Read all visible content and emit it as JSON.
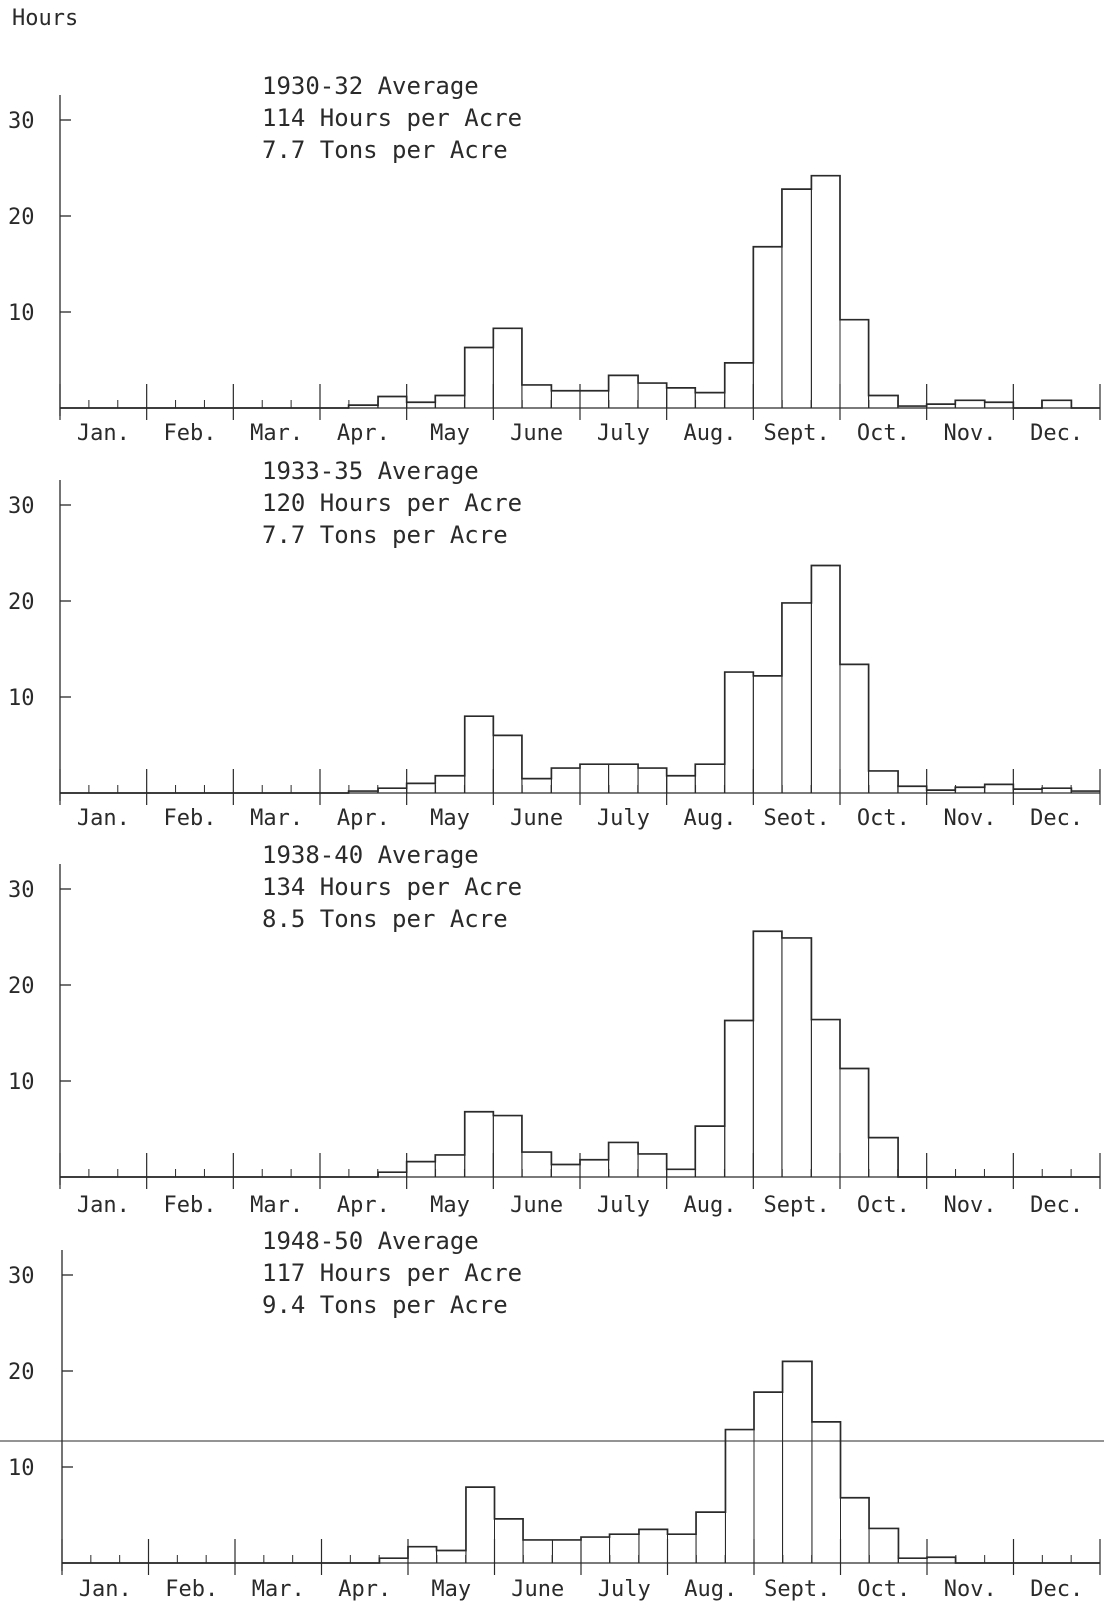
{
  "y_unit_label": "Hours",
  "chart_data": [
    {
      "type": "bar",
      "step_histogram": true,
      "title_lines": [
        "1930-32 Average",
        "114 Hours per Acre",
        "7.7 Tons per Acre"
      ],
      "xlabel": "",
      "ylabel": "Hours",
      "ylim": [
        0,
        30
      ],
      "yticks": [
        10,
        20,
        30
      ],
      "month_labels": [
        "Jan.",
        "Feb.",
        "Mar.",
        "Apr.",
        "May",
        "June",
        "July",
        "Aug.",
        "Sept.",
        "Oct.",
        "Nov.",
        "Dec."
      ],
      "period_starts": [
        0,
        0.33,
        0.67,
        1,
        1.33,
        1.67,
        2,
        2.33,
        2.67,
        3,
        3.33,
        3.67,
        4,
        4.33,
        4.67,
        5,
        5.33,
        5.67,
        6,
        6.33,
        6.67,
        7,
        7.33,
        7.67,
        8,
        8.33,
        8.67,
        9,
        9.33,
        9.67,
        10,
        10.33,
        10.67,
        11,
        11.33,
        11.67
      ],
      "values": [
        0,
        0,
        0,
        0,
        0,
        0,
        0,
        0,
        0,
        0,
        0.3,
        1.2,
        0.6,
        1.3,
        6.3,
        8.3,
        2.4,
        1.8,
        1.8,
        3.4,
        2.6,
        2.1,
        1.6,
        4.7,
        16.8,
        22.8,
        24.2,
        9.2,
        1.3,
        0.2,
        0.4,
        0.8,
        0.6,
        0,
        0.8,
        0
      ]
    },
    {
      "type": "bar",
      "step_histogram": true,
      "title_lines": [
        "1933-35 Average",
        "120 Hours per Acre",
        "7.7 Tons per Acre"
      ],
      "xlabel": "",
      "ylabel": "Hours",
      "ylim": [
        0,
        30
      ],
      "yticks": [
        10,
        20,
        30
      ],
      "month_labels": [
        "Jan.",
        "Feb.",
        "Mar.",
        "Apr.",
        "May",
        "June",
        "July",
        "Aug.",
        "Seot.",
        "Oct.",
        "Nov.",
        "Dec."
      ],
      "period_starts": [
        0,
        0.33,
        0.67,
        1,
        1.33,
        1.67,
        2,
        2.33,
        2.67,
        3,
        3.33,
        3.67,
        4,
        4.33,
        4.67,
        5,
        5.33,
        5.67,
        6,
        6.33,
        6.67,
        7,
        7.33,
        7.67,
        8,
        8.33,
        8.67,
        9,
        9.33,
        9.67,
        10,
        10.33,
        10.67,
        11,
        11.33,
        11.67
      ],
      "values": [
        0,
        0,
        0,
        0,
        0,
        0,
        0,
        0,
        0,
        0,
        0.2,
        0.5,
        1.0,
        1.8,
        8.0,
        6.0,
        1.5,
        2.6,
        3.0,
        3.0,
        2.6,
        1.8,
        3.0,
        12.6,
        12.2,
        19.8,
        23.7,
        13.4,
        2.3,
        0.7,
        0.3,
        0.6,
        0.9,
        0.4,
        0.5,
        0.2
      ]
    },
    {
      "type": "bar",
      "step_histogram": true,
      "title_lines": [
        "1938-40 Average",
        "134 Hours per Acre",
        "8.5 Tons per Acre"
      ],
      "xlabel": "",
      "ylabel": "Hours",
      "ylim": [
        0,
        30
      ],
      "yticks": [
        10,
        20,
        30
      ],
      "month_labels": [
        "Jan.",
        "Feb.",
        "Mar.",
        "Apr.",
        "May",
        "June",
        "July",
        "Aug.",
        "Sept.",
        "Oct.",
        "Nov.",
        "Dec."
      ],
      "period_starts": [
        0,
        0.33,
        0.67,
        1,
        1.33,
        1.67,
        2,
        2.33,
        2.67,
        3,
        3.33,
        3.67,
        4,
        4.33,
        4.67,
        5,
        5.33,
        5.67,
        6,
        6.33,
        6.67,
        7,
        7.33,
        7.67,
        8,
        8.33,
        8.67,
        9,
        9.33,
        9.67,
        10,
        10.33,
        10.67,
        11,
        11.33,
        11.67
      ],
      "values": [
        0,
        0,
        0,
        0,
        0,
        0,
        0,
        0,
        0,
        0,
        0,
        0.5,
        1.6,
        2.3,
        6.8,
        6.4,
        2.6,
        1.3,
        1.8,
        3.6,
        2.4,
        0.8,
        5.3,
        16.3,
        25.6,
        24.9,
        16.4,
        11.3,
        4.1,
        0,
        0,
        0,
        0,
        0,
        0,
        0
      ]
    },
    {
      "type": "bar",
      "step_histogram": true,
      "title_lines": [
        "1948-50 Average",
        "117 Hours per Acre",
        "9.4 Tons per Acre"
      ],
      "xlabel": "",
      "ylabel": "Hours",
      "ylim": [
        0,
        30
      ],
      "yticks": [
        10,
        20,
        30
      ],
      "month_labels": [
        "Jan.",
        "Feb.",
        "Mar.",
        "Apr.",
        "May",
        "June",
        "July",
        "Aug.",
        "Sept.",
        "Oct.",
        "Nov.",
        "Dec."
      ],
      "period_starts": [
        0,
        0.33,
        0.67,
        1,
        1.33,
        1.67,
        2,
        2.33,
        2.67,
        3,
        3.33,
        3.67,
        4,
        4.33,
        4.67,
        5,
        5.33,
        5.67,
        6,
        6.33,
        6.67,
        7,
        7.33,
        7.67,
        8,
        8.33,
        8.67,
        9,
        9.33,
        9.67,
        10,
        10.33,
        10.67,
        11,
        11.33,
        11.67
      ],
      "values": [
        0,
        0,
        0,
        0,
        0,
        0,
        0,
        0,
        0,
        0,
        0,
        0.5,
        1.7,
        1.3,
        7.9,
        4.6,
        2.4,
        2.4,
        2.7,
        3.0,
        3.5,
        3.0,
        5.3,
        13.9,
        17.8,
        21.0,
        14.7,
        6.8,
        3.6,
        0.5,
        0.6,
        0,
        0,
        0,
        0,
        0
      ]
    }
  ]
}
